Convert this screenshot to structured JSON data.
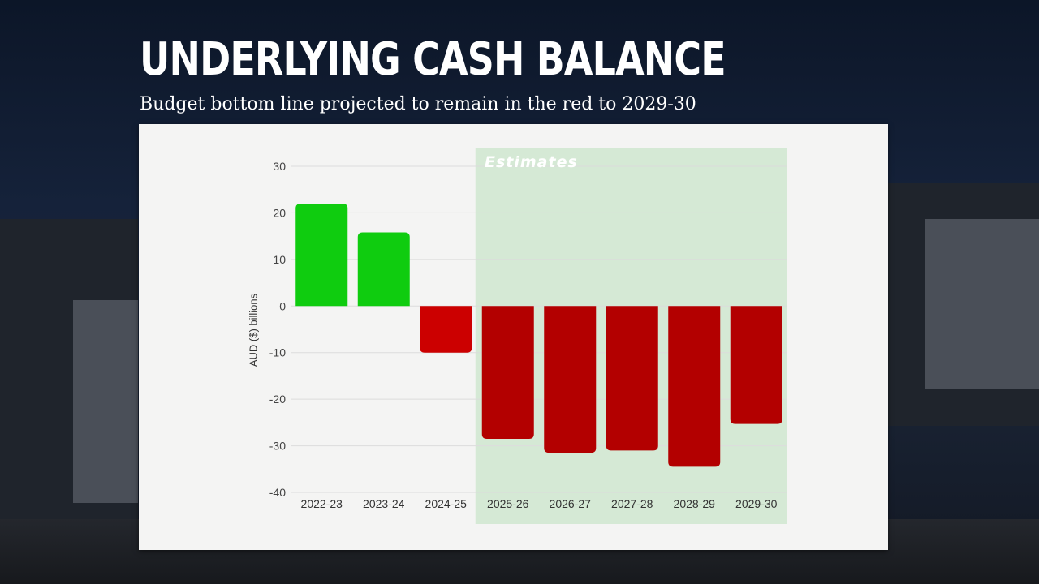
{
  "header": {
    "title": "UNDERLYING CASH BALANCE",
    "subtitle": "Budget bottom line projected to remain in the red to 2029-30"
  },
  "chart_data": {
    "type": "bar",
    "categories": [
      "2022-23",
      "2023-24",
      "2024-25",
      "2025-26",
      "2026-27",
      "2027-28",
      "2028-29",
      "2029-30"
    ],
    "values": [
      22,
      15.8,
      -10,
      -28.5,
      -31.5,
      -31,
      -34.5,
      -25.3
    ],
    "ylabel": "AUD ($) billions",
    "ylim": [
      -40,
      30
    ],
    "yticks": [
      30,
      20,
      10,
      0,
      -10,
      -20,
      -30,
      -40
    ],
    "grid": true,
    "annotation": "Estimates",
    "estimates_from": "2025-26",
    "colors": {
      "surplus": "#0fcc0f",
      "deficit": "#cc0000",
      "deficit_estimate": "#b30000",
      "estimates_band": "#cfe6cf"
    }
  }
}
